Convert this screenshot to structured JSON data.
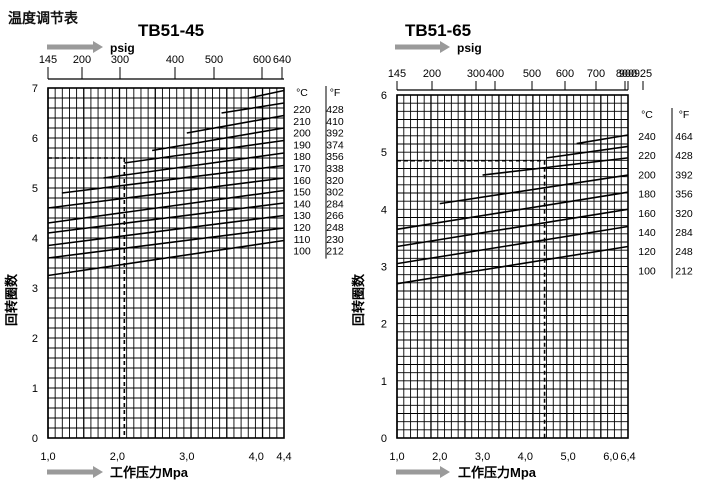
{
  "page_title": "温度调节表",
  "chart_data": [
    {
      "type": "line",
      "title": "TB51-45",
      "top_axis_unit": "psig",
      "top_axis_ticks": [
        "145",
        "200",
        "300",
        "400",
        "500",
        "600",
        "640"
      ],
      "xlabel": "工作压力Mpa",
      "xticks": [
        1.0,
        2.0,
        3.0,
        4.0,
        4.4
      ],
      "xtick_labels": [
        "1,0",
        "2,0",
        "3,0",
        "4,0",
        "4,4"
      ],
      "xlim": [
        1.0,
        4.4
      ],
      "ylabel": "回转圈数",
      "yticks": [
        0,
        1,
        2,
        3,
        4,
        5,
        6,
        7
      ],
      "ylim": [
        0,
        7
      ],
      "grid": true,
      "temp_table": {
        "c_header": "°C",
        "f_header": "°F",
        "c": [
          "220",
          "210",
          "200",
          "190",
          "180",
          "170",
          "160",
          "150",
          "140",
          "130",
          "120",
          "110",
          "100"
        ],
        "f": [
          "428",
          "410",
          "392",
          "374",
          "356",
          "338",
          "320",
          "302",
          "284",
          "266",
          "248",
          "230",
          "212"
        ]
      },
      "series": [
        {
          "name": "220",
          "x": [
            3.9,
            4.4
          ],
          "y": [
            6.8,
            6.95
          ]
        },
        {
          "name": "210",
          "x": [
            3.5,
            4.4
          ],
          "y": [
            6.5,
            6.7
          ]
        },
        {
          "name": "200",
          "x": [
            3.0,
            4.4
          ],
          "y": [
            6.1,
            6.45
          ]
        },
        {
          "name": "190",
          "x": [
            2.5,
            4.4
          ],
          "y": [
            5.75,
            6.2
          ]
        },
        {
          "name": "180",
          "x": [
            2.1,
            4.4
          ],
          "y": [
            5.5,
            5.95
          ]
        },
        {
          "name": "170",
          "x": [
            1.8,
            4.4
          ],
          "y": [
            5.2,
            5.7
          ]
        },
        {
          "name": "160",
          "x": [
            1.2,
            4.4
          ],
          "y": [
            4.9,
            5.45
          ]
        },
        {
          "name": "150",
          "x": [
            1.0,
            4.4
          ],
          "y": [
            4.6,
            5.2
          ]
        },
        {
          "name": "140",
          "x": [
            1.0,
            4.4
          ],
          "y": [
            4.3,
            4.95
          ]
        },
        {
          "name": "130",
          "x": [
            1.0,
            4.4
          ],
          "y": [
            4.1,
            4.7
          ]
        },
        {
          "name": "120",
          "x": [
            1.0,
            4.4
          ],
          "y": [
            3.85,
            4.45
          ]
        },
        {
          "name": "110",
          "x": [
            1.0,
            4.4
          ],
          "y": [
            3.6,
            4.2
          ]
        },
        {
          "name": "100",
          "x": [
            1.0,
            4.4
          ],
          "y": [
            3.25,
            3.95
          ]
        }
      ],
      "reference": {
        "x": 2.1,
        "y": 5.6
      }
    },
    {
      "type": "line",
      "title": "TB51-65",
      "top_axis_unit": "psig",
      "top_axis_ticks": [
        "145",
        "200",
        "300",
        "400",
        "500",
        "600",
        "700",
        "800",
        "900",
        "925"
      ],
      "xlabel": "工作压力Mpa",
      "xticks": [
        1.0,
        2.0,
        3.0,
        4.0,
        5.0,
        6.0,
        6.4
      ],
      "xtick_labels": [
        "1,0",
        "2,0",
        "3,0",
        "4,0",
        "5,0",
        "6,0",
        "6,4"
      ],
      "xlim": [
        1.0,
        6.4
      ],
      "ylabel": "回转圈数",
      "yticks": [
        0,
        1,
        2,
        3,
        4,
        5,
        6
      ],
      "ylim": [
        0,
        6
      ],
      "grid": true,
      "temp_table": {
        "c_header": "°C",
        "f_header": "°F",
        "c": [
          "240",
          "220",
          "200",
          "180",
          "160",
          "140",
          "120",
          "100"
        ],
        "f": [
          "464",
          "428",
          "392",
          "356",
          "320",
          "284",
          "248",
          "212"
        ]
      },
      "series": [
        {
          "name": "240",
          "x": [
            5.2,
            6.4
          ],
          "y": [
            5.15,
            5.3
          ]
        },
        {
          "name": "220",
          "x": [
            4.5,
            6.4
          ],
          "y": [
            4.9,
            5.1
          ]
        },
        {
          "name": "200",
          "x": [
            3.0,
            6.4
          ],
          "y": [
            4.6,
            4.9
          ]
        },
        {
          "name": "180",
          "x": [
            2.0,
            6.4
          ],
          "y": [
            4.1,
            4.6
          ]
        },
        {
          "name": "160",
          "x": [
            1.0,
            6.4
          ],
          "y": [
            3.65,
            4.3
          ]
        },
        {
          "name": "140",
          "x": [
            1.0,
            6.4
          ],
          "y": [
            3.35,
            4.0
          ]
        },
        {
          "name": "120",
          "x": [
            1.0,
            6.4
          ],
          "y": [
            3.05,
            3.7
          ]
        },
        {
          "name": "100",
          "x": [
            1.0,
            6.4
          ],
          "y": [
            2.7,
            3.35
          ]
        }
      ],
      "reference": {
        "x": 4.45,
        "y": 4.85
      }
    }
  ]
}
